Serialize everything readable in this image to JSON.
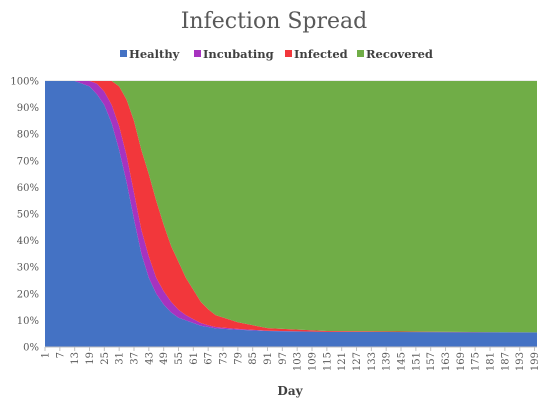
{
  "chart_data": {
    "type": "area",
    "stacked": "percent",
    "title": "Infection Spread",
    "xlabel": "Day",
    "ylabel": "",
    "legend_position": "top",
    "x_range": [
      1,
      200
    ],
    "ylim": [
      0,
      100
    ],
    "y_ticks": [
      "0%",
      "10%",
      "20%",
      "30%",
      "40%",
      "50%",
      "60%",
      "70%",
      "80%",
      "90%",
      "100%"
    ],
    "x_tick_labels": [
      "1",
      "7",
      "13",
      "19",
      "25",
      "31",
      "37",
      "43",
      "49",
      "55",
      "61",
      "67",
      "73",
      "79",
      "85",
      "91",
      "97",
      "103",
      "109",
      "115",
      "121",
      "127",
      "133",
      "139",
      "145",
      "151",
      "157",
      "163",
      "169",
      "175",
      "181",
      "187",
      "193",
      "199"
    ],
    "series": [
      {
        "name": "Healthy",
        "color": "#4472c4",
        "points": [
          [
            1,
            100
          ],
          [
            13,
            100
          ],
          [
            16,
            99
          ],
          [
            19,
            98
          ],
          [
            22,
            95
          ],
          [
            25,
            91
          ],
          [
            28,
            84
          ],
          [
            31,
            74
          ],
          [
            34,
            62
          ],
          [
            37,
            48
          ],
          [
            40,
            35
          ],
          [
            43,
            26
          ],
          [
            46,
            20
          ],
          [
            49,
            16
          ],
          [
            52,
            13
          ],
          [
            55,
            11
          ],
          [
            58,
            10
          ],
          [
            61,
            9
          ],
          [
            64,
            8
          ],
          [
            67,
            7.5
          ],
          [
            70,
            7
          ],
          [
            79,
            6.5
          ],
          [
            91,
            6
          ],
          [
            115,
            5.7
          ],
          [
            200,
            5.5
          ]
        ]
      },
      {
        "name": "Incubating",
        "color": "#a733bf",
        "points": [
          [
            1,
            0
          ],
          [
            13,
            0
          ],
          [
            16,
            1
          ],
          [
            19,
            2
          ],
          [
            22,
            4
          ],
          [
            25,
            5
          ],
          [
            28,
            7
          ],
          [
            31,
            9
          ],
          [
            34,
            10
          ],
          [
            37,
            10
          ],
          [
            40,
            9
          ],
          [
            43,
            8
          ],
          [
            46,
            6
          ],
          [
            49,
            5
          ],
          [
            52,
            4
          ],
          [
            55,
            3
          ],
          [
            58,
            2
          ],
          [
            61,
            1.5
          ],
          [
            64,
            1
          ],
          [
            67,
            0.7
          ],
          [
            70,
            0.5
          ],
          [
            79,
            0.3
          ],
          [
            91,
            0.1
          ],
          [
            115,
            0
          ],
          [
            200,
            0
          ]
        ]
      },
      {
        "name": "Infected",
        "color": "#f2373b",
        "points": [
          [
            1,
            0
          ],
          [
            13,
            0
          ],
          [
            16,
            0
          ],
          [
            19,
            0
          ],
          [
            22,
            1
          ],
          [
            25,
            4
          ],
          [
            28,
            9
          ],
          [
            31,
            15
          ],
          [
            34,
            21
          ],
          [
            37,
            27
          ],
          [
            40,
            30
          ],
          [
            43,
            31
          ],
          [
            46,
            29
          ],
          [
            49,
            25
          ],
          [
            52,
            21
          ],
          [
            55,
            18
          ],
          [
            58,
            14
          ],
          [
            61,
            11
          ],
          [
            64,
            8
          ],
          [
            67,
            6
          ],
          [
            70,
            4.5
          ],
          [
            79,
            2.5
          ],
          [
            91,
            1
          ],
          [
            115,
            0.3
          ],
          [
            200,
            0
          ]
        ]
      },
      {
        "name": "Recovered",
        "color": "#70ad47",
        "points": [
          [
            1,
            0
          ],
          [
            13,
            0
          ],
          [
            16,
            0
          ],
          [
            19,
            0
          ],
          [
            22,
            0
          ],
          [
            25,
            0
          ],
          [
            28,
            0
          ],
          [
            31,
            2
          ],
          [
            34,
            7
          ],
          [
            37,
            15
          ],
          [
            40,
            26
          ],
          [
            43,
            35
          ],
          [
            46,
            45
          ],
          [
            49,
            54
          ],
          [
            52,
            62
          ],
          [
            55,
            68
          ],
          [
            58,
            74
          ],
          [
            61,
            78.5
          ],
          [
            64,
            83
          ],
          [
            67,
            85.8
          ],
          [
            70,
            88
          ],
          [
            79,
            90.7
          ],
          [
            91,
            92.9
          ],
          [
            115,
            94
          ],
          [
            200,
            94.5
          ]
        ]
      }
    ]
  }
}
